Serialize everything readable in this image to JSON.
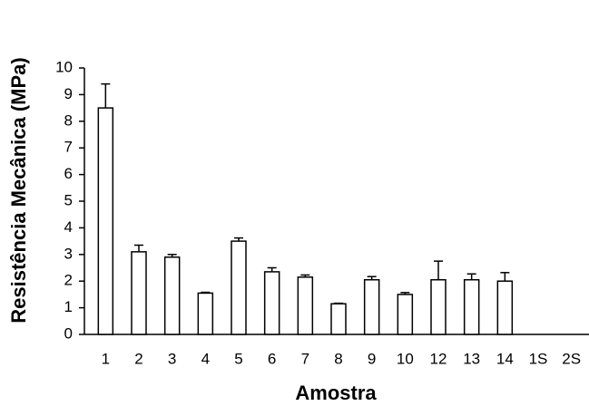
{
  "chart_data": {
    "type": "bar",
    "x_label": "Amostra",
    "y_label": "Resistência Mecânica (MPa)",
    "categories": [
      "1",
      "2",
      "3",
      "4",
      "5",
      "6",
      "7",
      "8",
      "9",
      "10",
      "12",
      "13",
      "14",
      "1S",
      "2S"
    ],
    "values": [
      8.5,
      3.1,
      2.9,
      1.55,
      3.5,
      2.35,
      2.15,
      1.15,
      2.05,
      1.5,
      2.05,
      2.05,
      2.0,
      null,
      null
    ],
    "errors": [
      0.9,
      0.25,
      0.1,
      0.03,
      0.12,
      0.15,
      0.08,
      0.02,
      0.12,
      0.07,
      0.7,
      0.22,
      0.32,
      null,
      null
    ],
    "color": "#ffffff",
    "ylim": [
      0,
      10
    ],
    "yticks": [
      0,
      1,
      2,
      3,
      4,
      5,
      6,
      7,
      8,
      9,
      10
    ]
  }
}
